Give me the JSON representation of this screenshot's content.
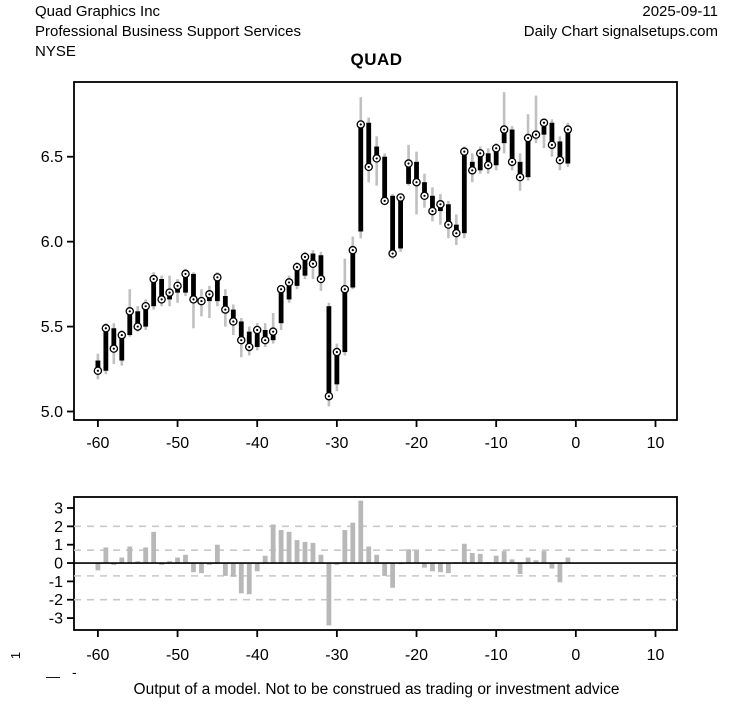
{
  "header": {
    "company": "Quad Graphics Inc",
    "industry": "Professional Business Support Services",
    "exchange": "NYSE",
    "date": "2025-09-11",
    "chart_source": "Daily Chart signalsetups.com",
    "symbol": "QUAD"
  },
  "footer": {
    "disclaimer": "Output of a model. Not to be construed as trading or investment advice"
  },
  "margin_marks": {
    "rotated_digit": "1",
    "dash_long": "—",
    "dash_short": "-"
  },
  "chart_data": [
    {
      "type": "ohlc-candlestick",
      "title": "QUAD",
      "xlabel": "",
      "ylabel": "",
      "xlim": [
        -63,
        12.7
      ],
      "ylim": [
        4.95,
        6.94
      ],
      "x_ticks": [
        -60,
        -50,
        -40,
        -30,
        -20,
        -10,
        0,
        10
      ],
      "x_tick_labels": [
        "-60",
        "-50",
        "-40",
        "-30",
        "-20",
        "-10",
        "0",
        "10"
      ],
      "y_ticks": [
        5.0,
        5.5,
        6.0,
        6.5
      ],
      "y_tick_labels": [
        "5.0",
        "5.5",
        "6.0",
        "6.5"
      ],
      "grid": false,
      "legend": "none",
      "colors": {
        "wick": "#c0c0c0",
        "body": "#000000",
        "marker_fill": "#ffffff",
        "marker_stroke": "#000000",
        "frame": "#000000"
      },
      "x": [
        -60,
        -59,
        -58,
        -57,
        -56,
        -55,
        -54,
        -53,
        -52,
        -51,
        -50,
        -49,
        -48,
        -47,
        -46,
        -45,
        -44,
        -43,
        -42,
        -41,
        -40,
        -39,
        -38,
        -37,
        -36,
        -35,
        -34,
        -33,
        -32,
        -31,
        -30,
        -29,
        -28,
        -27,
        -26,
        -25,
        -24,
        -23,
        -22,
        -21,
        -20,
        -19,
        -18,
        -17,
        -16,
        -15,
        -14,
        -13,
        -12,
        -11,
        -10,
        -9,
        -8,
        -7,
        -6,
        -5,
        -4,
        -3,
        -2,
        -1
      ],
      "open": [
        5.3,
        5.24,
        5.49,
        5.3,
        5.45,
        5.59,
        5.5,
        5.62,
        5.78,
        5.66,
        5.7,
        5.7,
        5.81,
        5.66,
        5.65,
        5.65,
        5.68,
        5.6,
        5.53,
        5.47,
        5.38,
        5.48,
        5.42,
        5.52,
        5.66,
        5.74,
        5.8,
        5.93,
        5.92,
        5.62,
        5.16,
        5.35,
        5.73,
        6.06,
        6.7,
        6.56,
        6.5,
        6.27,
        5.96,
        6.34,
        6.47,
        6.35,
        6.27,
        6.18,
        6.22,
        6.1,
        6.05,
        6.47,
        6.42,
        6.52,
        6.45,
        6.58,
        6.66,
        6.47,
        6.38,
        6.61,
        6.63,
        6.7,
        6.59,
        6.46
      ],
      "high": [
        5.34,
        5.52,
        5.52,
        5.48,
        5.72,
        5.62,
        5.66,
        5.82,
        5.8,
        5.8,
        5.78,
        5.84,
        5.82,
        5.72,
        5.74,
        5.82,
        5.72,
        5.63,
        5.55,
        5.5,
        5.52,
        5.52,
        5.58,
        5.74,
        5.8,
        5.88,
        5.94,
        5.95,
        5.94,
        5.64,
        5.4,
        5.9,
        6.03,
        6.85,
        6.73,
        6.62,
        6.52,
        6.28,
        6.28,
        6.57,
        6.53,
        6.4,
        6.32,
        6.28,
        6.24,
        6.16,
        6.56,
        6.52,
        6.56,
        6.55,
        6.58,
        6.88,
        6.68,
        6.52,
        6.75,
        6.86,
        6.72,
        6.72,
        6.62,
        6.7
      ],
      "low": [
        5.19,
        5.22,
        5.28,
        5.27,
        5.44,
        5.47,
        5.48,
        5.6,
        5.62,
        5.62,
        5.64,
        5.68,
        5.49,
        5.56,
        5.55,
        5.62,
        5.5,
        5.45,
        5.32,
        5.33,
        5.36,
        5.38,
        5.4,
        5.48,
        5.64,
        5.72,
        5.78,
        5.78,
        5.71,
        5.03,
        5.12,
        5.33,
        5.72,
        6.02,
        6.35,
        6.33,
        6.22,
        5.9,
        5.94,
        6.33,
        6.16,
        6.2,
        6.12,
        6.1,
        6.02,
        5.98,
        6.02,
        6.35,
        6.4,
        6.4,
        6.42,
        6.52,
        6.42,
        6.3,
        6.36,
        6.58,
        6.55,
        6.5,
        6.42,
        6.44
      ],
      "close": [
        5.24,
        5.49,
        5.37,
        5.45,
        5.59,
        5.5,
        5.62,
        5.78,
        5.66,
        5.7,
        5.74,
        5.81,
        5.66,
        5.65,
        5.69,
        5.79,
        5.6,
        5.53,
        5.42,
        5.38,
        5.48,
        5.42,
        5.47,
        5.72,
        5.76,
        5.85,
        5.91,
        5.87,
        5.78,
        5.09,
        5.35,
        5.72,
        5.95,
        6.69,
        6.44,
        6.49,
        6.24,
        5.93,
        6.26,
        6.46,
        6.35,
        6.27,
        6.18,
        6.22,
        6.1,
        6.05,
        6.53,
        6.42,
        6.52,
        6.45,
        6.55,
        6.66,
        6.47,
        6.38,
        6.61,
        6.63,
        6.7,
        6.57,
        6.48,
        6.66
      ]
    },
    {
      "type": "bar",
      "title": "",
      "xlabel": "",
      "ylabel": "",
      "xlim": [
        -63,
        12.7
      ],
      "ylim": [
        -3.65,
        3.6
      ],
      "x_ticks": [
        -60,
        -50,
        -40,
        -30,
        -20,
        -10,
        0,
        10
      ],
      "x_tick_labels": [
        "-60",
        "-50",
        "-40",
        "-30",
        "-20",
        "-10",
        "0",
        "10"
      ],
      "y_ticks": [
        3,
        2,
        1,
        0,
        -1,
        -2,
        -3
      ],
      "y_tick_labels": [
        "3",
        "2",
        "1",
        "0",
        "-1",
        "-2",
        "-3"
      ],
      "threshold_lines": [
        2,
        0.7,
        -0.7,
        -2
      ],
      "zero_line": true,
      "grid": "dashed-thresholds",
      "legend": "none",
      "bar_color": "#b8b8b8",
      "threshold_color": "#c8c8c8",
      "frame_color": "#000000",
      "x": [
        -60,
        -59,
        -58,
        -57,
        -56,
        -55,
        -54,
        -53,
        -52,
        -51,
        -50,
        -49,
        -48,
        -47,
        -46,
        -45,
        -44,
        -43,
        -42,
        -41,
        -40,
        -39,
        -38,
        -37,
        -36,
        -35,
        -34,
        -33,
        -32,
        -31,
        -30,
        -29,
        -28,
        -27,
        -26,
        -25,
        -24,
        -23,
        -22,
        -21,
        -20,
        -19,
        -18,
        -17,
        -16,
        -15,
        -14,
        -13,
        -12,
        -11,
        -10,
        -9,
        -8,
        -7,
        -6,
        -5,
        -4,
        -3,
        -2,
        -1
      ],
      "values": [
        -0.4,
        0.85,
        -0.1,
        0.3,
        0.9,
        0.1,
        0.85,
        1.7,
        -0.1,
        0.1,
        0.3,
        0.45,
        -0.5,
        -0.55,
        -0.1,
        1.0,
        -0.7,
        -0.75,
        -1.65,
        -1.7,
        -0.45,
        0.4,
        2.1,
        1.8,
        1.7,
        1.25,
        1.15,
        1.1,
        0.45,
        -3.4,
        -0.1,
        1.8,
        2.2,
        3.4,
        0.9,
        0.45,
        -0.7,
        -1.35,
        -0.05,
        0.75,
        0.7,
        -0.25,
        -0.45,
        -0.5,
        -0.55,
        0.05,
        1.05,
        0.55,
        0.5,
        0.05,
        0.4,
        0.65,
        0.2,
        -0.6,
        0.3,
        0.15,
        0.65,
        -0.3,
        -1.05,
        0.3
      ]
    }
  ]
}
